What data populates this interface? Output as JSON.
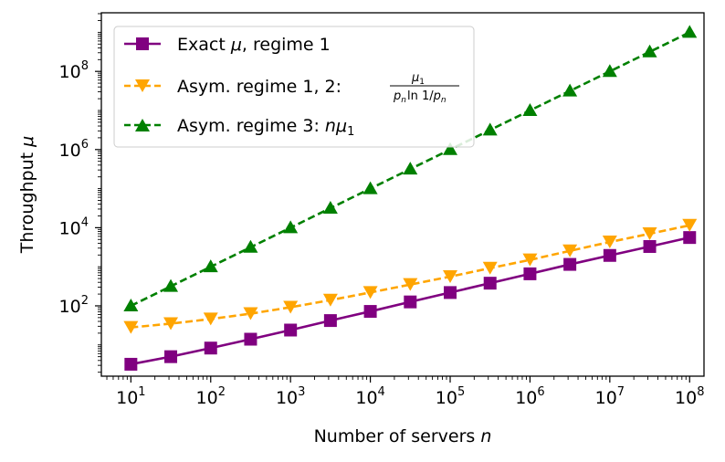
{
  "chart_data": {
    "type": "line",
    "xscale": "log",
    "yscale": "log",
    "xlabel": "Number of servers",
    "xlabel_var": "n",
    "ylabel": "Throughput",
    "ylabel_var": "μ",
    "xlim_log10": [
      0.63,
      8.18
    ],
    "ylim_log10": [
      0.2,
      9.5
    ],
    "x_ticks": [
      {
        "base": "10",
        "exp": "1",
        "value": 10
      },
      {
        "base": "10",
        "exp": "2",
        "value": 100
      },
      {
        "base": "10",
        "exp": "3",
        "value": 1000
      },
      {
        "base": "10",
        "exp": "4",
        "value": 10000
      },
      {
        "base": "10",
        "exp": "5",
        "value": 100000
      },
      {
        "base": "10",
        "exp": "6",
        "value": 1000000
      },
      {
        "base": "10",
        "exp": "7",
        "value": 10000000
      },
      {
        "base": "10",
        "exp": "8",
        "value": 100000000
      }
    ],
    "y_ticks": [
      {
        "base": "10",
        "exp": "2",
        "value": 100
      },
      {
        "base": "10",
        "exp": "4",
        "value": 10000
      },
      {
        "base": "10",
        "exp": "6",
        "value": 1000000
      },
      {
        "base": "10",
        "exp": "8",
        "value": 100000000
      }
    ],
    "legend_position": "top-left",
    "x": [
      10,
      31.6,
      100,
      316,
      1000,
      3162,
      10000,
      31623,
      100000,
      316228,
      1000000,
      3162278,
      10000000,
      31622777,
      100000000
    ],
    "series": [
      {
        "name": "Exact μ, regime 1",
        "legend_text_a": "Exact ",
        "legend_text_b": "μ",
        "legend_text_c": ", regime 1",
        "color": "#800080",
        "marker": "square",
        "dash": "solid",
        "values": [
          3.2,
          5.0,
          8.3,
          14.0,
          24.0,
          42.0,
          72.0,
          126,
          219,
          380,
          660,
          1150,
          1950,
          3300,
          5600
        ]
      },
      {
        "name": "Asym. regime 1, 2: μ1 / (pn ln 1/pn)",
        "legend_text_a": "Asym. regime 1, 2: ",
        "frac_num": "μ",
        "frac_num_sub": "1",
        "frac_den_p": "p",
        "frac_den_sub": "n",
        "frac_den_ln": "ln 1/",
        "color": "#FFA500",
        "marker": "triangle-down",
        "dash": "dashed",
        "values": [
          28,
          35,
          46,
          63,
          92,
          140,
          220,
          350,
          560,
          920,
          1500,
          2550,
          4300,
          7000,
          11500
        ]
      },
      {
        "name": "Asym. regime 3: nμ1",
        "legend_text_a": "Asym. regime 3: ",
        "legend_text_b": "nμ",
        "legend_text_sub": "1",
        "color": "#008000",
        "marker": "triangle-up",
        "dash": "dashed",
        "values": [
          100,
          316,
          1000,
          3162,
          10000,
          31623,
          100000,
          316228,
          1000000,
          3162278,
          10000000,
          31622777,
          100000000,
          316227766,
          1000000000
        ]
      }
    ]
  }
}
